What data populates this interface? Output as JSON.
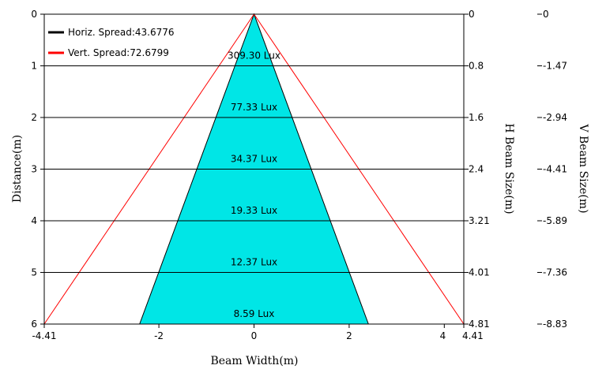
{
  "chart_data": {
    "type": "area",
    "legend_position": "top-left",
    "grid": "horizontal",
    "xlabel": "Beam Width(m)",
    "ylabel": "Distance(m)",
    "right_label_h": "H Beam Size(m)",
    "right_label_v": "V Beam Size(m)",
    "xlim": [
      -4.41,
      4.41
    ],
    "ylim": [
      0,
      6
    ],
    "x_ticks": [
      "-4.41",
      "-2",
      "0",
      "2",
      "4",
      "4.41"
    ],
    "y_ticks": [
      "0",
      "1",
      "2",
      "3",
      "4",
      "5",
      "6"
    ],
    "h_beam_ticks": [
      "0",
      "0.8",
      "1.6",
      "2.4",
      "3.21",
      "4.01",
      "4.81"
    ],
    "v_beam_ticks": [
      "0",
      "-1.47",
      "-2.94",
      "-4.41",
      "-5.89",
      "-7.36",
      "-8.83"
    ],
    "lux_labels": [
      {
        "distance": 0.8,
        "text": "309.30 Lux"
      },
      {
        "distance": 1.8,
        "text": "77.33 Lux"
      },
      {
        "distance": 2.8,
        "text": "34.37 Lux"
      },
      {
        "distance": 3.8,
        "text": "19.33 Lux"
      },
      {
        "distance": 4.8,
        "text": "12.37 Lux"
      },
      {
        "distance": 5.8,
        "text": "8.59 Lux"
      }
    ],
    "series": [
      {
        "name": "Horiz. Spread:43.6776",
        "color": "#000000",
        "fill": "#00e6e6",
        "points": [
          [
            0,
            0
          ],
          [
            -2.405,
            6
          ],
          [
            2.405,
            6
          ]
        ]
      },
      {
        "name": "Vert. Spread:72.6799",
        "color": "#ff0000",
        "points": [
          [
            0,
            0
          ],
          [
            -4.41,
            6
          ],
          [
            4.41,
            6
          ]
        ]
      }
    ]
  }
}
